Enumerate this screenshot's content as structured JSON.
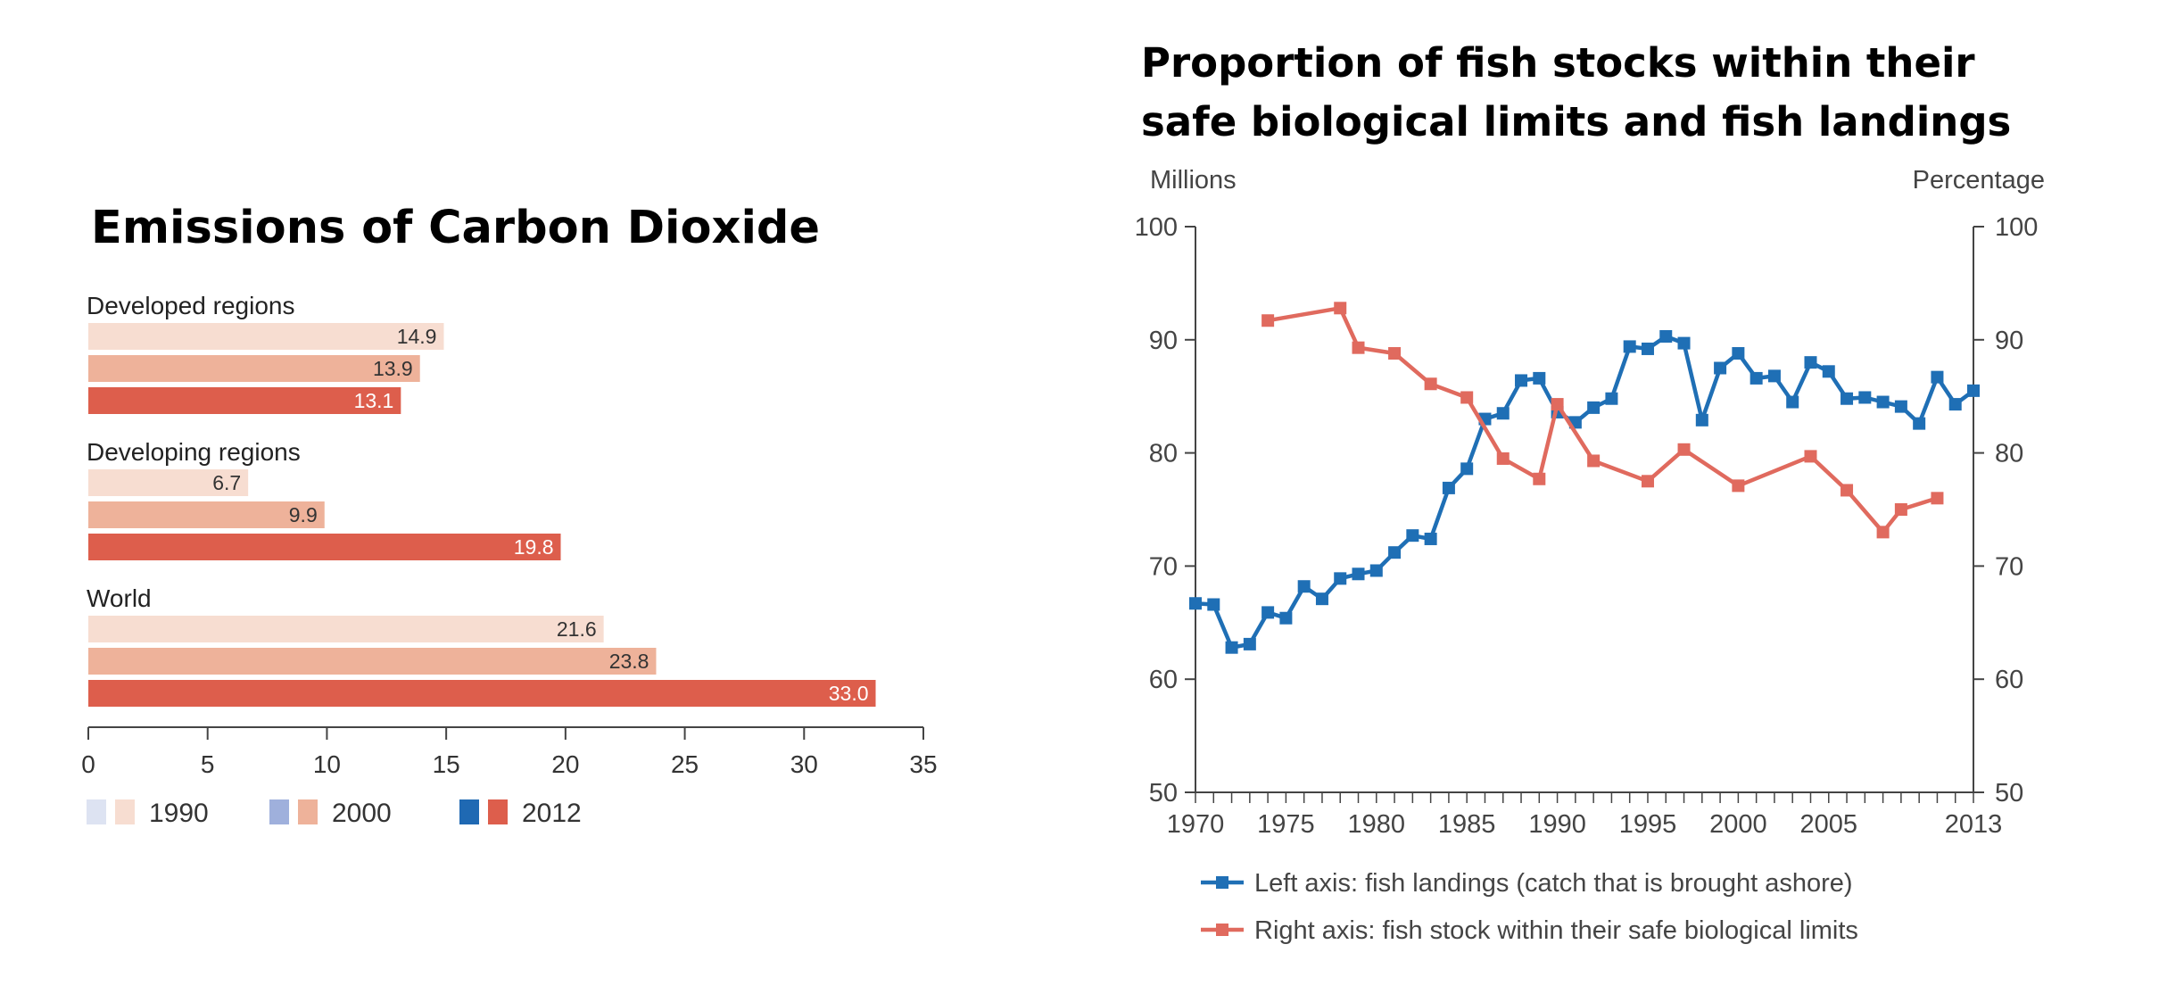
{
  "chart_data": [
    {
      "type": "bar",
      "orientation": "horizontal",
      "title": "Emissions of Carbon Dioxide",
      "groups": [
        "Developed regions",
        "Developing regions",
        "World"
      ],
      "series": [
        {
          "name": "1990",
          "values": [
            14.9,
            6.7,
            21.6
          ],
          "color": "#f7ddd1",
          "legend_color_alt": "#dde3f2"
        },
        {
          "name": "2000",
          "values": [
            13.9,
            9.9,
            23.8
          ],
          "color": "#eeb29a",
          "legend_color_alt": "#9fb0dc"
        },
        {
          "name": "2012",
          "values": [
            13.1,
            19.8,
            33.0
          ],
          "color": "#dd5e4c",
          "legend_color_alt": "#1f69b3"
        }
      ],
      "value_labels": [
        [
          "14.9",
          "6.7",
          "21.6"
        ],
        [
          "13.9",
          "9.9",
          "23.8"
        ],
        [
          "13.1",
          "19.8",
          "33.0"
        ]
      ],
      "xlim": [
        0,
        35
      ],
      "xticks": [
        0,
        5,
        10,
        15,
        20,
        25,
        30,
        35
      ],
      "xtick_labels": [
        "0",
        "5",
        "10",
        "15",
        "20",
        "25",
        "30",
        "35"
      ],
      "legend_labels": [
        "1990",
        "2000",
        "2012"
      ],
      "legend_position": "bottom-left",
      "grid": false
    },
    {
      "type": "line",
      "title": "Proportion of fish stocks within their safe biological limits and fish landings",
      "ylabel_left": "Millions",
      "ylabel_right": "Percentage",
      "xlim": [
        1970,
        2013
      ],
      "ylim": [
        50,
        100
      ],
      "xticks": [
        1970,
        1975,
        1980,
        1985,
        1990,
        1995,
        2000,
        2005,
        2013
      ],
      "xtick_labels": [
        "1970",
        "1975",
        "1980",
        "1985",
        "1990",
        "1995",
        "2000",
        "2005",
        "2013"
      ],
      "yticks": [
        50,
        60,
        70,
        80,
        90,
        100
      ],
      "ytick_labels": [
        "50",
        "60",
        "70",
        "80",
        "90",
        "100"
      ],
      "series": [
        {
          "name": "Left axis: fish landings (catch that is brought ashore)",
          "axis": "left",
          "color": "#1f6fb5",
          "x": [
            1970,
            1971,
            1972,
            1973,
            1974,
            1975,
            1976,
            1977,
            1978,
            1979,
            1980,
            1981,
            1982,
            1983,
            1984,
            1985,
            1986,
            1987,
            1988,
            1989,
            1990,
            1991,
            1992,
            1993,
            1994,
            1995,
            1996,
            1997,
            1998,
            1999,
            2000,
            2001,
            2002,
            2003,
            2004,
            2005,
            2006,
            2007,
            2008,
            2009,
            2010,
            2011,
            2012,
            2013
          ],
          "y": [
            66.7,
            66.6,
            62.8,
            63.1,
            65.9,
            65.4,
            68.2,
            67.1,
            68.9,
            69.3,
            69.6,
            71.2,
            72.7,
            72.4,
            76.9,
            78.6,
            83.0,
            83.5,
            86.4,
            86.6,
            83.6,
            82.7,
            84.0,
            84.8,
            89.4,
            89.2,
            90.3,
            89.7,
            82.9,
            87.5,
            88.8,
            86.6,
            86.8,
            84.5,
            88.0,
            87.2,
            84.8,
            84.9,
            84.5,
            84.1,
            82.6,
            86.7,
            84.3,
            85.5
          ]
        },
        {
          "name": "Right axis: fish stock within their safe biological limits",
          "axis": "right",
          "color": "#e06a5e",
          "x": [
            1974,
            1978,
            1979,
            1981,
            1983,
            1985,
            1987,
            1989,
            1990,
            1992,
            1995,
            1997,
            2000,
            2004,
            2006,
            2008,
            2009,
            2011
          ],
          "y": [
            91.7,
            92.8,
            89.3,
            88.8,
            86.1,
            84.9,
            79.5,
            77.7,
            84.3,
            79.3,
            77.5,
            80.3,
            77.1,
            79.7,
            76.7,
            73.0,
            75.0,
            76.0
          ]
        }
      ],
      "legend_position": "bottom",
      "grid": false
    }
  ]
}
